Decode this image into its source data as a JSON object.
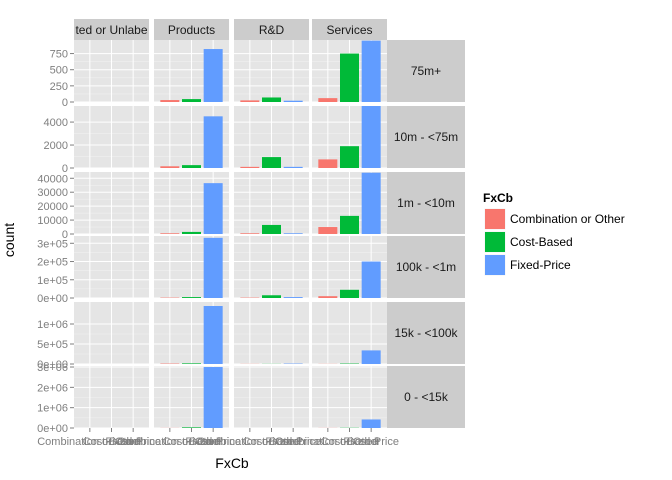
{
  "chart_data": {
    "type": "bar",
    "xlabel": "FxCb",
    "ylabel": "count",
    "categories": [
      "Combination or Other",
      "Cost-Based",
      "Fixed-Price"
    ],
    "tick_labels": [
      "Combination or Other",
      "Cost-Based",
      "Fixed-Price"
    ],
    "colors": [
      "#f8766d",
      "#00ba38",
      "#619cff"
    ],
    "columns": [
      "Unlabeled or Unlabeled",
      "Products",
      "R&D",
      "Services"
    ],
    "column_display": [
      "ted or Unlabe",
      "Products",
      "R&D",
      "Services"
    ],
    "rows": [
      {
        "label": "75m+",
        "ylim": [
          0,
          960
        ],
        "ticks": [
          0,
          250,
          500,
          750
        ],
        "tick_labels": [
          "0",
          "250",
          "500",
          "750"
        ],
        "values": [
          [
            0,
            0,
            0
          ],
          [
            30,
            45,
            820
          ],
          [
            25,
            70,
            20
          ],
          [
            60,
            750,
            950
          ]
        ]
      },
      {
        "label": "10m - <75m",
        "ylim": [
          0,
          5400
        ],
        "ticks": [
          0,
          2000,
          4000
        ],
        "tick_labels": [
          "0",
          "2000",
          "4000"
        ],
        "values": [
          [
            0,
            0,
            0
          ],
          [
            150,
            250,
            4500
          ],
          [
            100,
            950,
            100
          ],
          [
            750,
            1900,
            5400
          ]
        ]
      },
      {
        "label": "1m - <10m",
        "ylim": [
          0,
          44500
        ],
        "ticks": [
          0,
          10000,
          20000,
          30000,
          40000
        ],
        "tick_labels": [
          "0",
          "10000",
          "20000",
          "30000",
          "40000"
        ],
        "values": [
          [
            0,
            0,
            0
          ],
          [
            500,
            1500,
            36500
          ],
          [
            500,
            6500,
            500
          ],
          [
            5000,
            13000,
            44000
          ]
        ]
      },
      {
        "label": "100k - <1m",
        "ylim": [
          0,
          340000
        ],
        "ticks": [
          0,
          100000,
          200000,
          300000
        ],
        "tick_labels": [
          "0e+00",
          "1e+05",
          "2e+05",
          "3e+05"
        ],
        "values": [
          [
            0,
            0,
            0
          ],
          [
            2000,
            5000,
            330000
          ],
          [
            2000,
            15000,
            5000
          ],
          [
            10000,
            45000,
            200000
          ]
        ]
      },
      {
        "label": "15k - <100k",
        "ylim": [
          0,
          1550000
        ],
        "ticks": [
          0,
          500000,
          1000000
        ],
        "tick_labels": [
          "0e+00",
          "5e+05",
          "1e+06"
        ],
        "values": [
          [
            0,
            0,
            0
          ],
          [
            10000,
            15000,
            1450000
          ],
          [
            3000,
            3000,
            10000
          ],
          [
            3000,
            10000,
            340000
          ]
        ]
      },
      {
        "label": "0 - <15k",
        "ylim": [
          0,
          3050000
        ],
        "ticks": [
          0,
          1000000,
          2000000,
          3000000
        ],
        "tick_labels": [
          "0e+00",
          "1e+06",
          "2e+06",
          "3e+06"
        ],
        "values": [
          [
            0,
            0,
            0
          ],
          [
            5000,
            30000,
            3000000
          ],
          [
            0,
            0,
            0
          ],
          [
            5000,
            10000,
            420000
          ]
        ]
      }
    ],
    "legend": {
      "title": "FxCb",
      "entries": [
        "Combination or Other",
        "Cost-Based",
        "Fixed-Price"
      ],
      "position": "right"
    },
    "grid": true
  }
}
